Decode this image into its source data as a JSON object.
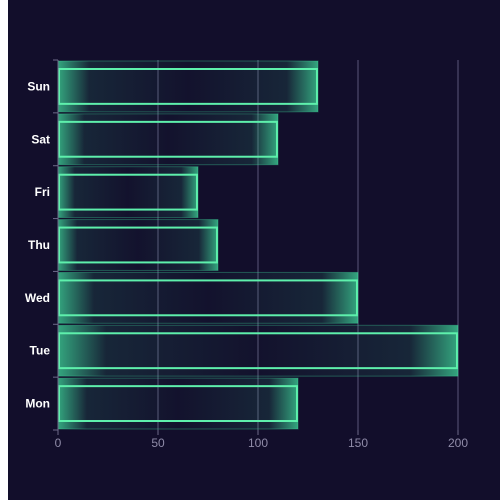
{
  "chart_data": {
    "type": "bar",
    "orientation": "horizontal",
    "categories": [
      "Mon",
      "Tue",
      "Wed",
      "Thu",
      "Fri",
      "Sat",
      "Sun"
    ],
    "series": [
      {
        "values": [
          120,
          200,
          150,
          80,
          70,
          110,
          130
        ]
      }
    ],
    "title": "",
    "xlabel": "",
    "ylabel": "",
    "xlim": [
      0,
      200
    ],
    "x_ticks": [
      "0",
      "50",
      "100",
      "150",
      "200"
    ],
    "grid": "vertical",
    "legend": "none",
    "colors": {
      "background": "#120e2b",
      "bar_stroke": "#5ef0ac",
      "bar_glow": "#3fd89a",
      "grid": "#5a5678",
      "axis": "#6e6a8a",
      "category_label": "#ffffff",
      "tick_label": "#8f8ba8"
    }
  }
}
